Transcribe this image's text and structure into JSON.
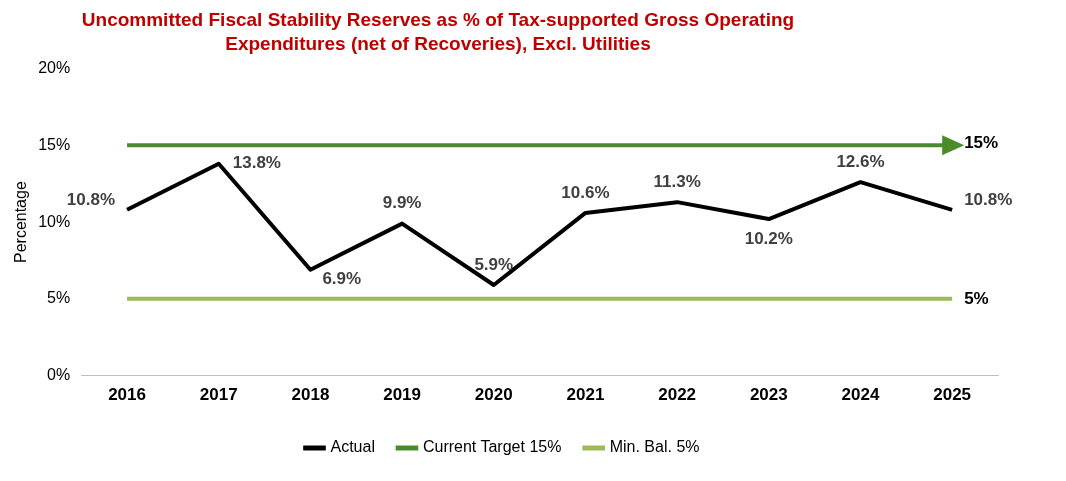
{
  "chart_data": {
    "type": "line",
    "title": "Uncommitted Fiscal Stability Reserves as % of Tax-supported Gross Operating Expenditures (net of Recoveries), Excl. Utilities",
    "ylabel": "Percentage",
    "categories": [
      "2016",
      "2017",
      "2018",
      "2019",
      "2020",
      "2021",
      "2022",
      "2023",
      "2024",
      "2025"
    ],
    "series": [
      {
        "name": "Actual",
        "color": "#000000",
        "values": [
          10.8,
          13.8,
          6.9,
          9.9,
          5.9,
          10.6,
          11.3,
          10.2,
          12.6,
          10.8
        ],
        "value_labels": [
          "10.8%",
          "13.8%",
          "6.9%",
          "9.9%",
          "5.9%",
          "10.6%",
          "11.3%",
          "10.2%",
          "12.6%",
          "10.8%"
        ]
      },
      {
        "name": "Current Target 15%",
        "color": "#4a8b2c",
        "values": [
          15,
          15,
          15,
          15,
          15,
          15,
          15,
          15,
          15,
          15
        ],
        "value_labels": [
          null,
          null,
          null,
          null,
          null,
          null,
          null,
          null,
          null,
          "15%"
        ]
      },
      {
        "name": "Min. Bal. 5%",
        "color": "#9bbb59",
        "values": [
          5,
          5,
          5,
          5,
          5,
          5,
          5,
          5,
          5,
          5
        ],
        "value_labels": [
          null,
          null,
          null,
          null,
          null,
          null,
          null,
          null,
          null,
          "5%"
        ]
      }
    ],
    "ylim": [
      0,
      20
    ],
    "yticks": [
      {
        "value": 0,
        "label": "0%"
      },
      {
        "value": 5,
        "label": "5%"
      },
      {
        "value": 10,
        "label": "10%"
      },
      {
        "value": 15,
        "label": "15%"
      },
      {
        "value": 20,
        "label": "20%"
      }
    ],
    "grid": false,
    "legend": "bottom",
    "marker": "none",
    "line_style": "solid"
  }
}
